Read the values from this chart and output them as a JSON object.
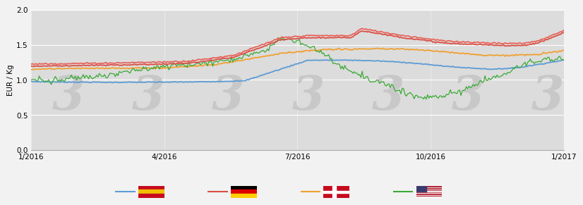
{
  "ylabel": "EUR / Kg",
  "ylim": [
    0.0,
    2.0
  ],
  "yticks": [
    0.0,
    0.5,
    1.0,
    1.5,
    2.0
  ],
  "xtick_labels": [
    "1/2016",
    "4/2016",
    "7/2016",
    "10/2016",
    "1/2017"
  ],
  "xtick_pos": [
    0,
    0.25,
    0.5,
    0.75,
    1.0
  ],
  "bg_color": "#dcdcdc",
  "fig_bg": "#f2f2f2",
  "line_blue": "#5b9bd5",
  "line_red1": "#e8635a",
  "line_red2": "#d94f45",
  "line_orange": "#f0a030",
  "line_green": "#3aaa35",
  "watermark_color": "#c8c8c8",
  "n_points": 400
}
